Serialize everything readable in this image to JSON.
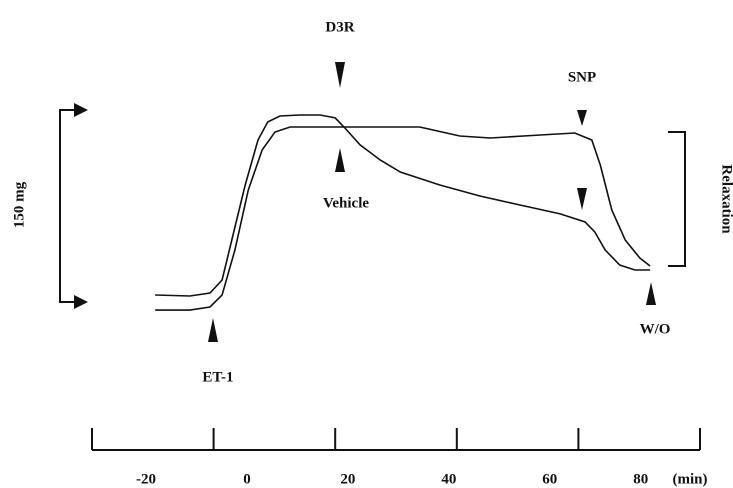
{
  "chart_data": {
    "type": "line",
    "annotations": [
      "D3R",
      "Vehicle",
      "SNP",
      "W/O",
      "ET-1"
    ],
    "scale_label": "150   mg",
    "bracket_label": "Relaxation",
    "x_unit": "(min)",
    "xlim": [
      -20,
      80
    ],
    "xticks": [
      -20,
      0,
      20,
      40,
      60,
      80
    ],
    "ylim": [
      0,
      150
    ],
    "series": [
      {
        "color": "#111111",
        "x": [
          -9.6,
          -3.9,
          -0.6,
          1.4,
          3.0,
          5.2,
          7.3,
          8.9,
          10.9,
          14.2,
          17.5,
          20.0,
          21.6,
          24.1,
          27.4,
          30.7,
          37.2,
          43.8,
          50.4,
          57.0,
          61.1,
          62.7,
          64.4,
          66.8,
          69.3,
          71.8
        ],
        "values": [
          5.5,
          4.7,
          7.0,
          17.2,
          48.4,
          91.4,
          126.6,
          140.6,
          145.3,
          146.1,
          146.1,
          143.8,
          135.9,
          122.7,
          110.9,
          101.6,
          91.4,
          82.8,
          75.8,
          68.8,
          62.5,
          54.7,
          40.6,
          28.9,
          25.0,
          25.0
        ]
      },
      {
        "color": "#111111",
        "x": [
          -9.6,
          -3.9,
          -0.6,
          1.4,
          3.5,
          5.7,
          8.0,
          10.1,
          12.6,
          17.5,
          24.1,
          33.9,
          40.5,
          45.5,
          53.7,
          59.4,
          62.2,
          63.6,
          65.5,
          67.7,
          70.1,
          71.8
        ],
        "values": [
          -6.3,
          -6.3,
          -3.9,
          5.5,
          40.6,
          87.5,
          118.8,
          132.8,
          136.7,
          136.7,
          136.7,
          136.7,
          129.7,
          128.1,
          130.5,
          132.0,
          126.6,
          107.0,
          71.9,
          48.4,
          34.4,
          28.1
        ]
      }
    ]
  }
}
